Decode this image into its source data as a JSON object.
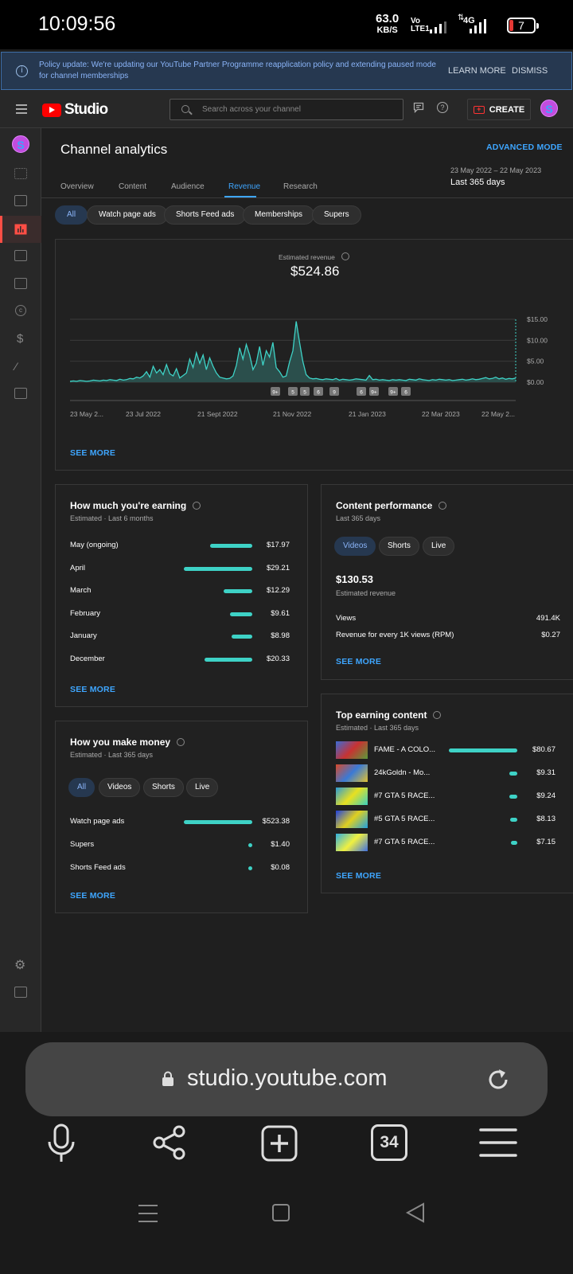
{
  "status_bar": {
    "time": "10:09:56",
    "speed_value": "63.0",
    "speed_unit": "KB/S",
    "volte_top": "Vo",
    "volte_bottom": "LTE1",
    "network": "4G",
    "battery": "7"
  },
  "banner": {
    "message": "Policy update: We're updating our YouTube Partner Programme reapplication policy and extending paused mode for channel memberships",
    "learn_more": "LEARN MORE",
    "dismiss": "DISMISS"
  },
  "header": {
    "brand": "Studio",
    "search_placeholder": "Search across your channel",
    "create_label": "CREATE",
    "avatar_letter": "S"
  },
  "page": {
    "title": "Channel analytics",
    "advanced_mode": "ADVANCED MODE",
    "date_range": "23 May 2022 – 22 May 2023",
    "date_label": "Last 365 days",
    "tabs": [
      {
        "label": "Overview",
        "active": false
      },
      {
        "label": "Content",
        "active": false
      },
      {
        "label": "Audience",
        "active": false
      },
      {
        "label": "Revenue",
        "active": true
      },
      {
        "label": "Research",
        "active": false
      }
    ],
    "chips": [
      {
        "label": "All",
        "selected": true
      },
      {
        "label": "Watch page ads",
        "selected": false
      },
      {
        "label": "Shorts Feed ads",
        "selected": false
      },
      {
        "label": "Memberships",
        "selected": false
      },
      {
        "label": "Supers",
        "selected": false
      }
    ]
  },
  "revenue_chart": {
    "label": "Estimated revenue",
    "total": "$524.86",
    "see_more": "SEE MORE",
    "markers": [
      "9+",
      "5",
      "5",
      "6",
      "9",
      "6",
      "9+",
      "9+",
      "6"
    ]
  },
  "chart_data": {
    "type": "area",
    "title": "Estimated revenue",
    "x_ticks": [
      "23 May 2...",
      "23 Jul 2022",
      "21 Sept 2022",
      "21 Nov 2022",
      "21 Jan 2023",
      "22 Mar 2023",
      "22 May 2..."
    ],
    "y_ticks": [
      "$0.00",
      "$5.00",
      "$10.00",
      "$15.00"
    ],
    "ylim": [
      0,
      15
    ],
    "series": [
      {
        "values": [
          0.2,
          0.3,
          0.2,
          0.4,
          0.3,
          0.2,
          0.3,
          0.5,
          0.4,
          0.3,
          0.5,
          0.4,
          0.6,
          0.5,
          0.4,
          0.7,
          0.5,
          0.6,
          0.9,
          0.8,
          1.2,
          1.0,
          1.5,
          2.5,
          1.2,
          3.8,
          2.2,
          3.0,
          1.8,
          4.2,
          2.0,
          1.5,
          3.2,
          1.0,
          1.6,
          2.2,
          5.5,
          3.5,
          7.0,
          4.5,
          6.5,
          3.0,
          5.8,
          3.8,
          2.2,
          1.2,
          1.0,
          0.8,
          0.9,
          1.5,
          4.0,
          8.2,
          5.5,
          9.0,
          6.5,
          3.0,
          4.5,
          8.5,
          4.0,
          7.5,
          6.0,
          9.5,
          3.5,
          2.5,
          1.2,
          1.5,
          4.8,
          7.5,
          14.5,
          9.5,
          5.0,
          1.8,
          1.0,
          0.8,
          0.9,
          0.7,
          0.6,
          0.8,
          0.7,
          0.6,
          0.9,
          0.5,
          0.7,
          0.6,
          0.5,
          0.6,
          0.8,
          0.7,
          0.6,
          0.5,
          1.6,
          0.6,
          0.7,
          0.5,
          0.6,
          0.5,
          0.4,
          0.6,
          0.5,
          0.6,
          0.5,
          0.4,
          0.7,
          0.6,
          0.5,
          0.8,
          0.6,
          0.5,
          0.4,
          0.6,
          0.5,
          0.7,
          0.6,
          0.5,
          0.6,
          0.4,
          0.5,
          0.6,
          0.7,
          0.5,
          0.6,
          0.8,
          0.6,
          0.7,
          0.9,
          1.1,
          0.8,
          0.9,
          1.2,
          0.8,
          1.0,
          0.7,
          0.9,
          0.8,
          1.0
        ]
      }
    ]
  },
  "earning": {
    "title": "How much you're earning",
    "subtitle": "Estimated · Last 6 months",
    "see_more": "SEE MORE",
    "rows": [
      {
        "label": "May (ongoing)",
        "value": "$17.97",
        "amount": 17.97
      },
      {
        "label": "April",
        "value": "$29.21",
        "amount": 29.21
      },
      {
        "label": "March",
        "value": "$12.29",
        "amount": 12.29
      },
      {
        "label": "February",
        "value": "$9.61",
        "amount": 9.61
      },
      {
        "label": "January",
        "value": "$8.98",
        "amount": 8.98
      },
      {
        "label": "December",
        "value": "$20.33",
        "amount": 20.33
      }
    ]
  },
  "money": {
    "title": "How you make money",
    "subtitle": "Estimated · Last 365 days",
    "see_more": "SEE MORE",
    "chips": [
      {
        "label": "All",
        "selected": true
      },
      {
        "label": "Videos",
        "selected": false
      },
      {
        "label": "Shorts",
        "selected": false
      },
      {
        "label": "Live",
        "selected": false
      }
    ],
    "rows": [
      {
        "label": "Watch page ads",
        "value": "$523.38",
        "amount": 523.38
      },
      {
        "label": "Supers",
        "value": "$1.40",
        "amount": 1.4
      },
      {
        "label": "Shorts Feed ads",
        "value": "$0.08",
        "amount": 0.08
      }
    ]
  },
  "performance": {
    "title": "Content performance",
    "subtitle": "Last 365 days",
    "chips": [
      {
        "label": "Videos",
        "selected": true
      },
      {
        "label": "Shorts",
        "selected": false
      },
      {
        "label": "Live",
        "selected": false
      }
    ],
    "amount": "$130.53",
    "amount_label": "Estimated revenue",
    "views_label": "Views",
    "views_value": "491.4K",
    "rpm_label": "Revenue for every 1K views (RPM)",
    "rpm_value": "$0.27",
    "see_more": "SEE MORE"
  },
  "top_earning": {
    "title": "Top earning content",
    "subtitle": "Estimated · Last 365 days",
    "see_more": "SEE MORE",
    "rows": [
      {
        "title": "FAME - A COLO...",
        "value": "$80.67",
        "amount": 80.67
      },
      {
        "title": "24kGoldn - Mo...",
        "value": "$9.31",
        "amount": 9.31
      },
      {
        "title": "#7 GTA 5 RACE...",
        "value": "$9.24",
        "amount": 9.24
      },
      {
        "title": "#5 GTA 5 RACE...",
        "value": "$8.13",
        "amount": 8.13
      },
      {
        "title": "#7 GTA 5 RACE...",
        "value": "$7.15",
        "amount": 7.15
      }
    ]
  },
  "browser": {
    "url": "studio.youtube.com",
    "tab_count": "34"
  }
}
